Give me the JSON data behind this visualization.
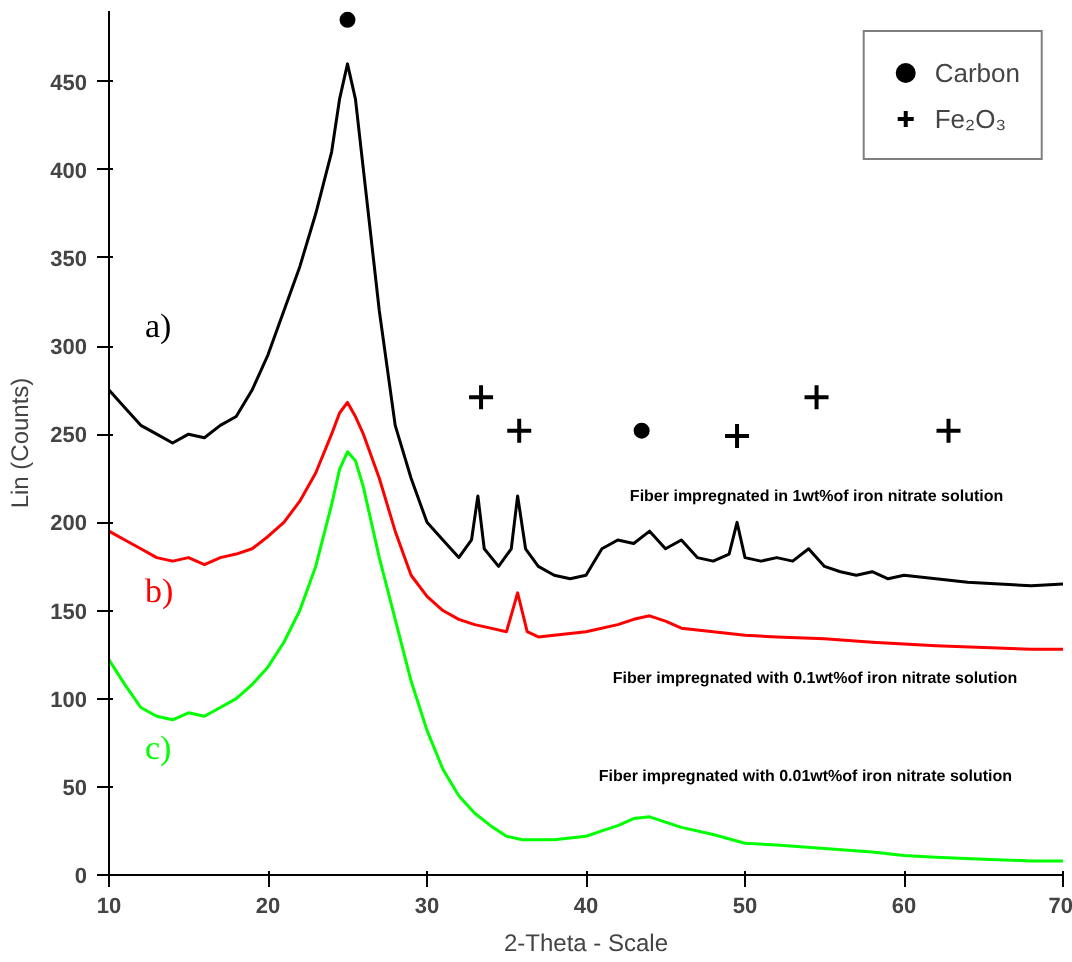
{
  "chart_data": {
    "type": "line",
    "xlabel": "2-Theta - Scale",
    "ylabel": "Lin (Counts)",
    "xlim": [
      10,
      70
    ],
    "ylim": [
      0,
      490
    ],
    "xticks": [
      10,
      20,
      30,
      40,
      50,
      60,
      70
    ],
    "yticks": [
      0,
      50,
      100,
      150,
      200,
      250,
      300,
      350,
      400,
      450
    ],
    "grid": false,
    "legend": "top right",
    "series": [
      {
        "name": "a)",
        "color": "#000000",
        "x": [
          10,
          11,
          12,
          13,
          14,
          15,
          16,
          17,
          18,
          19,
          20,
          21,
          22,
          23,
          24,
          24.5,
          25,
          25.5,
          26,
          27,
          28,
          29,
          30,
          31,
          32,
          32.8,
          33.2,
          33.6,
          34.5,
          35.3,
          35.7,
          36.2,
          37,
          38,
          39,
          40,
          41,
          42,
          43,
          44,
          45,
          46,
          47,
          48,
          49,
          49.5,
          50,
          51,
          52,
          53,
          54,
          55,
          56,
          57,
          58,
          59,
          60,
          62,
          64,
          66,
          68,
          70
        ],
        "values": [
          275,
          265,
          255,
          250,
          245,
          250,
          248,
          255,
          260,
          275,
          295,
          320,
          345,
          375,
          410,
          440,
          460,
          440,
          400,
          320,
          255,
          225,
          200,
          190,
          180,
          190,
          215,
          185,
          175,
          185,
          215,
          185,
          175,
          170,
          168,
          170,
          185,
          190,
          188,
          195,
          185,
          190,
          180,
          178,
          182,
          200,
          180,
          178,
          180,
          178,
          185,
          175,
          172,
          170,
          172,
          168,
          170,
          168,
          166,
          165,
          164,
          165
        ]
      },
      {
        "name": "b)",
        "color": "#ff0000",
        "x": [
          10,
          11,
          12,
          13,
          14,
          15,
          16,
          17,
          18,
          19,
          20,
          21,
          22,
          23,
          24,
          24.5,
          25,
          25.5,
          26,
          27,
          28,
          29,
          30,
          31,
          32,
          33,
          34,
          35,
          35.7,
          36.3,
          37,
          38,
          40,
          42,
          43,
          44,
          45,
          46,
          48,
          50,
          52,
          55,
          58,
          60,
          62,
          65,
          68,
          70
        ],
        "values": [
          195,
          190,
          185,
          180,
          178,
          180,
          176,
          180,
          182,
          185,
          192,
          200,
          212,
          228,
          250,
          262,
          268,
          260,
          250,
          225,
          195,
          170,
          158,
          150,
          145,
          142,
          140,
          138,
          160,
          138,
          135,
          136,
          138,
          142,
          145,
          147,
          144,
          140,
          138,
          136,
          135,
          134,
          132,
          131,
          130,
          129,
          128,
          128
        ]
      },
      {
        "name": "c)",
        "color": "#00ff00",
        "x": [
          10,
          11,
          12,
          13,
          14,
          15,
          16,
          17,
          18,
          19,
          20,
          21,
          22,
          23,
          24,
          24.5,
          25,
          25.5,
          26,
          27,
          28,
          29,
          30,
          31,
          32,
          33,
          34,
          35,
          36,
          38,
          40,
          41,
          42,
          43,
          44,
          45,
          46,
          48,
          50,
          52,
          55,
          58,
          60,
          62,
          65,
          68,
          70
        ],
        "values": [
          122,
          108,
          95,
          90,
          88,
          92,
          90,
          95,
          100,
          108,
          118,
          132,
          150,
          175,
          210,
          230,
          240,
          235,
          220,
          180,
          145,
          110,
          82,
          60,
          45,
          35,
          28,
          22,
          20,
          20,
          22,
          25,
          28,
          32,
          33,
          30,
          27,
          23,
          18,
          17,
          15,
          13,
          11,
          10,
          9,
          8,
          8
        ]
      },
      {
        "type": "scatter",
        "name": "Carbon",
        "color": "#000000",
        "marker": "circle",
        "x": [
          25,
          43.5
        ],
        "values": [
          485,
          252
        ]
      },
      {
        "type": "scatter",
        "name": "Fe₂O₃",
        "color": "#000000",
        "marker": "cross",
        "x": [
          33.4,
          35.8,
          49.5,
          54.5,
          62.8
        ],
        "values": [
          271,
          252,
          249,
          271,
          252
        ]
      }
    ],
    "annotations": [
      "Fiber impregnated in 1wt%of iron nitrate solution",
      "Fiber impregnated with 0.1wt%of iron nitrate solution",
      "Fiber impregnated with 0.01wt%of iron nitrate solution"
    ]
  }
}
